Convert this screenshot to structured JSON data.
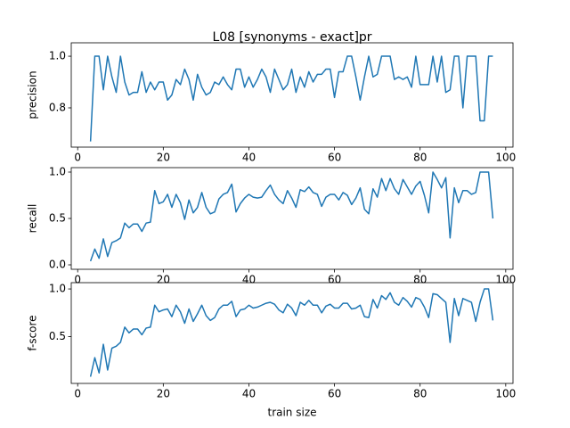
{
  "chart_data": [
    {
      "type": "line",
      "title": "L08 [synonyms - exact]pr",
      "ylabel": "precision",
      "x": [
        3,
        4,
        5,
        6,
        7,
        8,
        9,
        10,
        11,
        12,
        13,
        14,
        15,
        16,
        17,
        18,
        19,
        20,
        21,
        22,
        23,
        24,
        25,
        26,
        27,
        28,
        29,
        30,
        31,
        32,
        33,
        34,
        35,
        36,
        37,
        38,
        39,
        40,
        41,
        42,
        43,
        44,
        45,
        46,
        47,
        48,
        49,
        50,
        51,
        52,
        53,
        54,
        55,
        56,
        57,
        58,
        59,
        60,
        61,
        62,
        63,
        64,
        65,
        66,
        67,
        68,
        69,
        70,
        71,
        72,
        73,
        74,
        75,
        76,
        77,
        78,
        79,
        80,
        81,
        82,
        83,
        84,
        85,
        86,
        87,
        88,
        89,
        90,
        91,
        92,
        93,
        94,
        95,
        96,
        97
      ],
      "series": [
        {
          "color": "#1f77b4",
          "values": [
            0.67,
            1.0,
            1.0,
            0.87,
            1.0,
            0.92,
            0.86,
            1.0,
            0.9,
            0.85,
            0.86,
            0.86,
            0.94,
            0.86,
            0.9,
            0.87,
            0.9,
            0.9,
            0.83,
            0.85,
            0.91,
            0.89,
            0.95,
            0.91,
            0.83,
            0.93,
            0.88,
            0.85,
            0.86,
            0.9,
            0.89,
            0.92,
            0.89,
            0.87,
            0.95,
            0.95,
            0.88,
            0.92,
            0.88,
            0.91,
            0.95,
            0.92,
            0.86,
            0.95,
            0.91,
            0.87,
            0.89,
            0.95,
            0.86,
            0.92,
            0.88,
            0.94,
            0.9,
            0.93,
            0.93,
            0.95,
            0.95,
            0.84,
            0.94,
            0.94,
            1.0,
            1.0,
            0.92,
            0.83,
            0.92,
            1.0,
            0.92,
            0.93,
            1.0,
            1.0,
            1.0,
            0.91,
            0.92,
            0.91,
            0.92,
            0.88,
            1.0,
            0.89,
            0.89,
            0.89,
            1.0,
            0.9,
            1.0,
            0.86,
            0.87,
            1.0,
            1.0,
            0.8,
            1.0,
            1.0,
            1.0,
            0.75,
            0.75,
            1.0,
            1.0
          ]
        }
      ],
      "xlim": [
        -1.5,
        101.7
      ],
      "ylim": [
        0.648,
        1.052
      ],
      "xticks": [
        0,
        20,
        40,
        60,
        80,
        100
      ],
      "yticks": [
        0.8,
        {
          "value": 1.0,
          "label": "1.0"
        }
      ]
    },
    {
      "type": "line",
      "ylabel": "recall",
      "x": [
        3,
        4,
        5,
        6,
        7,
        8,
        9,
        10,
        11,
        12,
        13,
        14,
        15,
        16,
        17,
        18,
        19,
        20,
        21,
        22,
        23,
        24,
        25,
        26,
        27,
        28,
        29,
        30,
        31,
        32,
        33,
        34,
        35,
        36,
        37,
        38,
        39,
        40,
        41,
        42,
        43,
        44,
        45,
        46,
        47,
        48,
        49,
        50,
        51,
        52,
        53,
        54,
        55,
        56,
        57,
        58,
        59,
        60,
        61,
        62,
        63,
        64,
        65,
        66,
        67,
        68,
        69,
        70,
        71,
        72,
        73,
        74,
        75,
        76,
        77,
        78,
        79,
        80,
        81,
        82,
        83,
        84,
        85,
        86,
        87,
        88,
        89,
        90,
        91,
        92,
        93,
        94,
        95,
        96,
        97
      ],
      "series": [
        {
          "color": "#1f77b4",
          "values": [
            0.04,
            0.17,
            0.07,
            0.28,
            0.09,
            0.24,
            0.26,
            0.29,
            0.45,
            0.4,
            0.44,
            0.44,
            0.36,
            0.45,
            0.46,
            0.8,
            0.66,
            0.68,
            0.76,
            0.62,
            0.76,
            0.67,
            0.49,
            0.7,
            0.56,
            0.62,
            0.78,
            0.62,
            0.55,
            0.57,
            0.71,
            0.76,
            0.78,
            0.87,
            0.57,
            0.66,
            0.72,
            0.76,
            0.73,
            0.72,
            0.73,
            0.8,
            0.86,
            0.76,
            0.7,
            0.66,
            0.8,
            0.72,
            0.62,
            0.81,
            0.79,
            0.84,
            0.78,
            0.76,
            0.63,
            0.73,
            0.76,
            0.76,
            0.7,
            0.78,
            0.75,
            0.65,
            0.72,
            0.83,
            0.6,
            0.55,
            0.82,
            0.73,
            0.93,
            0.8,
            0.93,
            0.82,
            0.76,
            0.92,
            0.84,
            0.76,
            0.85,
            0.9,
            0.75,
            0.56,
            1.0,
            0.92,
            0.83,
            0.94,
            0.29,
            0.83,
            0.67,
            0.8,
            0.8,
            0.76,
            0.78,
            1.0,
            1.0,
            1.0,
            0.5
          ]
        }
      ],
      "xlim": [
        -1.5,
        101.7
      ],
      "ylim": [
        -0.048,
        1.048
      ],
      "xticks": [
        0,
        20,
        40,
        60,
        80,
        100
      ],
      "yticks": [
        {
          "value": 0,
          "label": "0.0"
        },
        0.5,
        {
          "value": 1.0,
          "label": "1.0"
        }
      ]
    },
    {
      "type": "line",
      "ylabel": "f-score",
      "xlabel": "train size",
      "x": [
        3,
        4,
        5,
        6,
        7,
        8,
        9,
        10,
        11,
        12,
        13,
        14,
        15,
        16,
        17,
        18,
        19,
        20,
        21,
        22,
        23,
        24,
        25,
        26,
        27,
        28,
        29,
        30,
        31,
        32,
        33,
        34,
        35,
        36,
        37,
        38,
        39,
        40,
        41,
        42,
        43,
        44,
        45,
        46,
        47,
        48,
        49,
        50,
        51,
        52,
        53,
        54,
        55,
        56,
        57,
        58,
        59,
        60,
        61,
        62,
        63,
        64,
        65,
        66,
        67,
        68,
        69,
        70,
        71,
        72,
        73,
        74,
        75,
        76,
        77,
        78,
        79,
        80,
        81,
        82,
        83,
        84,
        85,
        86,
        87,
        88,
        89,
        90,
        91,
        92,
        93,
        94,
        95,
        96,
        97
      ],
      "series": [
        {
          "color": "#1f77b4",
          "values": [
            0.08,
            0.28,
            0.12,
            0.42,
            0.15,
            0.38,
            0.4,
            0.44,
            0.6,
            0.54,
            0.58,
            0.58,
            0.52,
            0.59,
            0.6,
            0.83,
            0.76,
            0.78,
            0.79,
            0.71,
            0.83,
            0.76,
            0.64,
            0.79,
            0.66,
            0.74,
            0.83,
            0.72,
            0.67,
            0.7,
            0.79,
            0.83,
            0.83,
            0.87,
            0.71,
            0.78,
            0.79,
            0.83,
            0.8,
            0.81,
            0.83,
            0.85,
            0.86,
            0.84,
            0.78,
            0.75,
            0.84,
            0.8,
            0.72,
            0.86,
            0.83,
            0.88,
            0.83,
            0.83,
            0.75,
            0.82,
            0.84,
            0.8,
            0.8,
            0.85,
            0.85,
            0.79,
            0.8,
            0.83,
            0.71,
            0.7,
            0.89,
            0.8,
            0.93,
            0.89,
            0.96,
            0.86,
            0.83,
            0.91,
            0.87,
            0.81,
            0.91,
            0.89,
            0.81,
            0.7,
            0.95,
            0.94,
            0.9,
            0.86,
            0.44,
            0.9,
            0.72,
            0.9,
            0.88,
            0.86,
            0.66,
            0.86,
            1.0,
            1.0,
            0.67
          ]
        }
      ],
      "xlim": [
        -1.5,
        101.7
      ],
      "ylim": [
        0.01,
        1.066
      ],
      "xticks": [
        0,
        20,
        40,
        60,
        80,
        100
      ],
      "yticks": [
        0.5,
        {
          "value": 1.0,
          "label": "1.0"
        }
      ]
    }
  ]
}
